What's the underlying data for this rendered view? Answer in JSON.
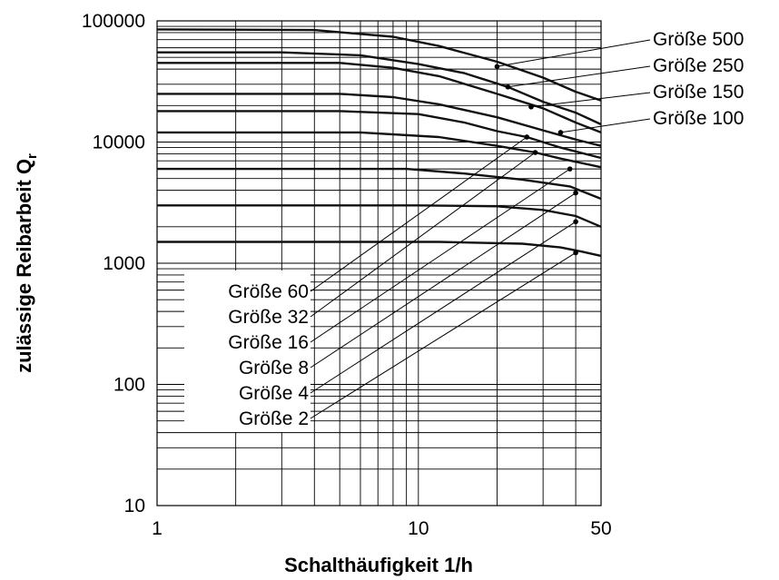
{
  "chart_data": {
    "type": "line",
    "title": "",
    "xlabel": "Schalthäufigkeit 1/h",
    "ylabel_main": "zulässige Reibarbeit Q",
    "ylabel_sub": "r",
    "x_scale": "log",
    "y_scale": "log",
    "xlim": [
      1,
      50
    ],
    "ylim": [
      10,
      100000
    ],
    "grid": true,
    "x_tick_labels": [
      {
        "value": 1,
        "label": "1"
      },
      {
        "value": 10,
        "label": "10"
      },
      {
        "value": 50,
        "label": "50"
      }
    ],
    "y_tick_labels": [
      {
        "value": 10,
        "label": "10"
      },
      {
        "value": 100,
        "label": "100"
      },
      {
        "value": 1000,
        "label": "1000"
      },
      {
        "value": 10000,
        "label": "10000"
      },
      {
        "value": 100000,
        "label": "100000"
      }
    ],
    "series": [
      {
        "name": "Größe 500",
        "label_side": "right",
        "plateau": 85000,
        "points": [
          [
            1,
            85000
          ],
          [
            4,
            84000
          ],
          [
            8,
            74000
          ],
          [
            12,
            62000
          ],
          [
            20,
            46000
          ],
          [
            30,
            34000
          ],
          [
            40,
            26000
          ],
          [
            50,
            22000
          ]
        ],
        "marker": [
          20,
          42000
        ]
      },
      {
        "name": "Größe 250",
        "label_side": "right",
        "plateau": 55000,
        "points": [
          [
            1,
            55000
          ],
          [
            3,
            55000
          ],
          [
            6,
            52000
          ],
          [
            10,
            44000
          ],
          [
            15,
            37000
          ],
          [
            22,
            28500
          ],
          [
            30,
            21500
          ],
          [
            40,
            17500
          ],
          [
            50,
            14000
          ]
        ],
        "marker": [
          22,
          28500
        ]
      },
      {
        "name": "Größe 150",
        "label_side": "right",
        "plateau": 45000,
        "points": [
          [
            1,
            45000
          ],
          [
            5,
            45000
          ],
          [
            8,
            41000
          ],
          [
            12,
            35000
          ],
          [
            20,
            25000
          ],
          [
            30,
            19000
          ],
          [
            40,
            14500
          ],
          [
            50,
            12000
          ]
        ],
        "marker": [
          27,
          19500
        ]
      },
      {
        "name": "Größe 100",
        "label_side": "right",
        "plateau": 25000,
        "points": [
          [
            1,
            25000
          ],
          [
            5,
            25000
          ],
          [
            8,
            23500
          ],
          [
            12,
            20500
          ],
          [
            20,
            16000
          ],
          [
            30,
            12500
          ],
          [
            40,
            10500
          ],
          [
            50,
            9300
          ]
        ],
        "marker": [
          35,
          12000
        ]
      },
      {
        "name": "Größe 60",
        "label_side": "left",
        "plateau": 18000,
        "points": [
          [
            1,
            18000
          ],
          [
            5,
            18000
          ],
          [
            10,
            17000
          ],
          [
            15,
            14500
          ],
          [
            20,
            12300
          ],
          [
            26,
            11000
          ],
          [
            35,
            9000
          ],
          [
            50,
            7400
          ]
        ],
        "marker": [
          26,
          11000
        ]
      },
      {
        "name": "Größe 32",
        "label_side": "left",
        "plateau": 12000,
        "points": [
          [
            1,
            12000
          ],
          [
            6,
            12000
          ],
          [
            12,
            11000
          ],
          [
            20,
            9300
          ],
          [
            28,
            8200
          ],
          [
            35,
            7300
          ],
          [
            50,
            6200
          ]
        ],
        "marker": [
          28,
          8200
        ]
      },
      {
        "name": "Größe 16",
        "label_side": "left",
        "plateau": 6000,
        "points": [
          [
            1,
            6000
          ],
          [
            9,
            6000
          ],
          [
            15,
            5500
          ],
          [
            25,
            4900
          ],
          [
            38,
            4300
          ],
          [
            50,
            3400
          ]
        ],
        "marker": [
          38,
          6000
        ]
      },
      {
        "name": "Größe 8",
        "label_side": "left",
        "plateau": 3000,
        "points": [
          [
            1,
            3000
          ],
          [
            10,
            3000
          ],
          [
            20,
            2950
          ],
          [
            30,
            2750
          ],
          [
            40,
            2450
          ],
          [
            50,
            2000
          ]
        ],
        "marker": [
          40,
          3800
        ]
      },
      {
        "name": "Größe 4",
        "label_side": "left",
        "plateau": 1500,
        "points": [
          [
            1,
            1500
          ],
          [
            12,
            1500
          ],
          [
            25,
            1450
          ],
          [
            35,
            1350
          ],
          [
            42,
            1250
          ],
          [
            50,
            1150
          ]
        ],
        "marker": [
          40,
          2200
        ]
      },
      {
        "name": "Größe 2",
        "label_side": "left",
        "plateau": null,
        "points": [],
        "marker": [
          40,
          1220
        ]
      }
    ],
    "leader_ends": {
      "Größe 500": [
        20,
        42000
      ],
      "Größe 250": [
        22,
        28500
      ],
      "Größe 150": [
        27,
        19500
      ],
      "Größe 100": [
        35,
        12000
      ],
      "Größe 60": [
        26,
        11000
      ],
      "Größe 32": [
        28,
        8200
      ],
      "Größe 16": [
        38,
        6000
      ],
      "Größe 8": [
        40,
        3800
      ],
      "Größe 4": [
        40,
        2200
      ],
      "Größe 2": [
        40,
        1220
      ]
    }
  }
}
